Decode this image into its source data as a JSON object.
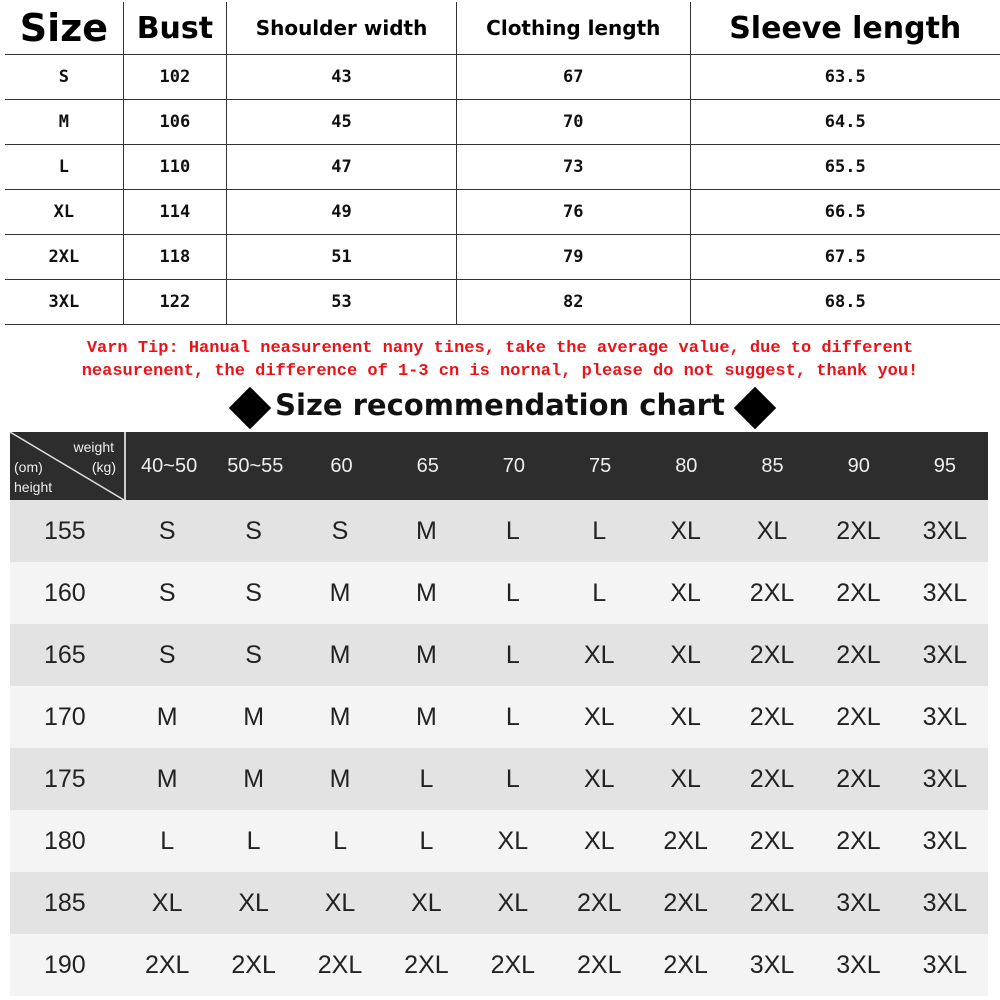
{
  "size_table": {
    "headers": [
      "Size",
      "Bust",
      "Shoulder width",
      "Clothing length",
      "Sleeve length"
    ],
    "rows": [
      [
        "S",
        "102",
        "43",
        "67",
        "63.5"
      ],
      [
        "M",
        "106",
        "45",
        "70",
        "64.5"
      ],
      [
        "L",
        "110",
        "47",
        "73",
        "65.5"
      ],
      [
        "XL",
        "114",
        "49",
        "76",
        "66.5"
      ],
      [
        "2XL",
        "118",
        "51",
        "79",
        "67.5"
      ],
      [
        "3XL",
        "122",
        "53",
        "82",
        "68.5"
      ]
    ]
  },
  "tip": {
    "line1": "Varn Tip: Hanual neasurenent nany tines, take the average value, due to different",
    "line2": "neasurenent, the difference of 1-3 cn is nornal, please do not suggest, thank you!",
    "color": "#e8141a"
  },
  "recommendation": {
    "title": "Size recommendation chart",
    "corner": {
      "weight": "weight",
      "cm": "(om)",
      "kg": "(kg)",
      "height": "height"
    },
    "weights": [
      "40~50",
      "50~55",
      "60",
      "65",
      "70",
      "75",
      "80",
      "85",
      "90",
      "95"
    ],
    "rows": [
      {
        "height": "155",
        "sizes": [
          "S",
          "S",
          "S",
          "M",
          "L",
          "L",
          "XL",
          "XL",
          "2XL",
          "3XL"
        ]
      },
      {
        "height": "160",
        "sizes": [
          "S",
          "S",
          "M",
          "M",
          "L",
          "L",
          "XL",
          "2XL",
          "2XL",
          "3XL"
        ]
      },
      {
        "height": "165",
        "sizes": [
          "S",
          "S",
          "M",
          "M",
          "L",
          "XL",
          "XL",
          "2XL",
          "2XL",
          "3XL"
        ]
      },
      {
        "height": "170",
        "sizes": [
          "M",
          "M",
          "M",
          "M",
          "L",
          "XL",
          "XL",
          "2XL",
          "2XL",
          "3XL"
        ]
      },
      {
        "height": "175",
        "sizes": [
          "M",
          "M",
          "M",
          "L",
          "L",
          "XL",
          "XL",
          "2XL",
          "2XL",
          "3XL"
        ]
      },
      {
        "height": "180",
        "sizes": [
          "L",
          "L",
          "L",
          "L",
          "XL",
          "XL",
          "2XL",
          "2XL",
          "2XL",
          "3XL"
        ]
      },
      {
        "height": "185",
        "sizes": [
          "XL",
          "XL",
          "XL",
          "XL",
          "XL",
          "2XL",
          "2XL",
          "2XL",
          "3XL",
          "3XL"
        ]
      },
      {
        "height": "190",
        "sizes": [
          "2XL",
          "2XL",
          "2XL",
          "2XL",
          "2XL",
          "2XL",
          "2XL",
          "3XL",
          "3XL",
          "3XL"
        ]
      }
    ]
  }
}
